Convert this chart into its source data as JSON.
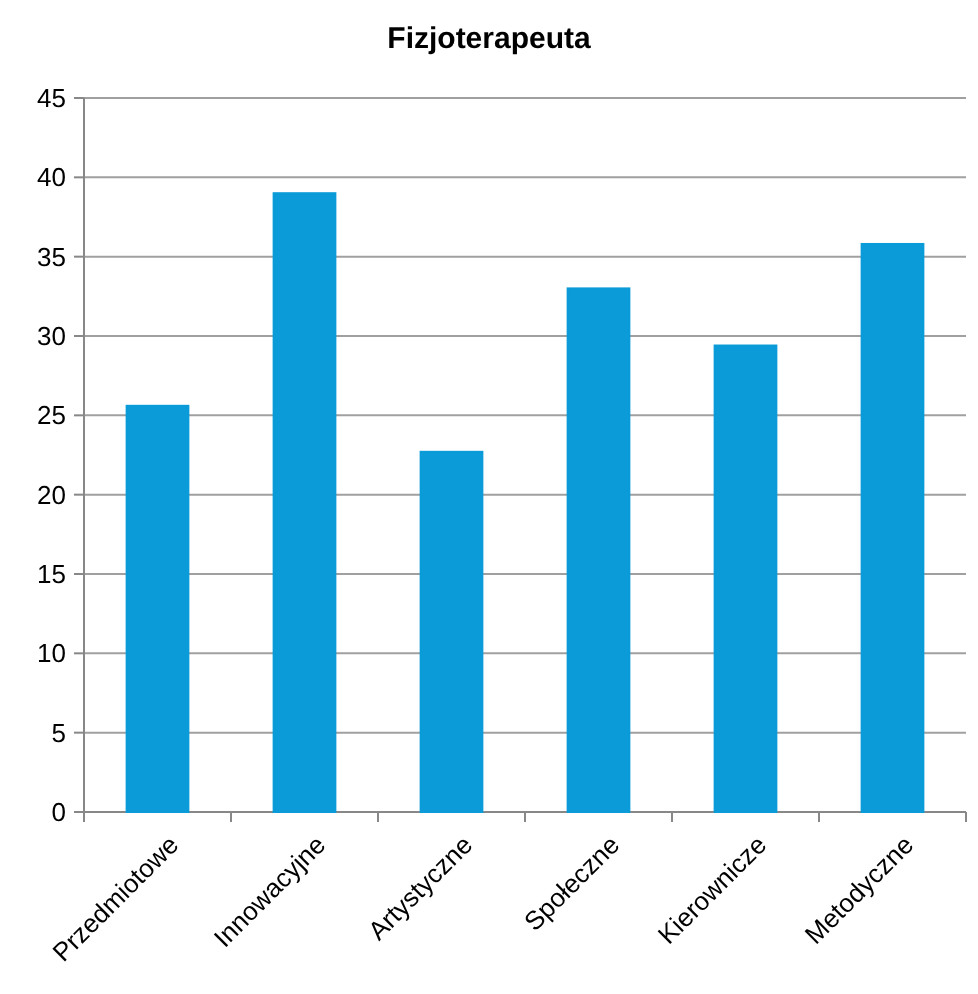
{
  "chart_data": {
    "type": "bar",
    "title": "Fizjoterapeuta",
    "categories": [
      "Przedmiotowe",
      "Innowacyjne",
      "Artystyczne",
      "Społeczne",
      "Kierownicze",
      "Metodyczne"
    ],
    "values": [
      25.6,
      39,
      22.7,
      33,
      29.4,
      35.8
    ],
    "color": "#0a9bd8",
    "ylim": [
      0,
      45
    ],
    "yticks": [
      0,
      5,
      10,
      15,
      20,
      25,
      30,
      35,
      40,
      45
    ],
    "grid": "y"
  }
}
